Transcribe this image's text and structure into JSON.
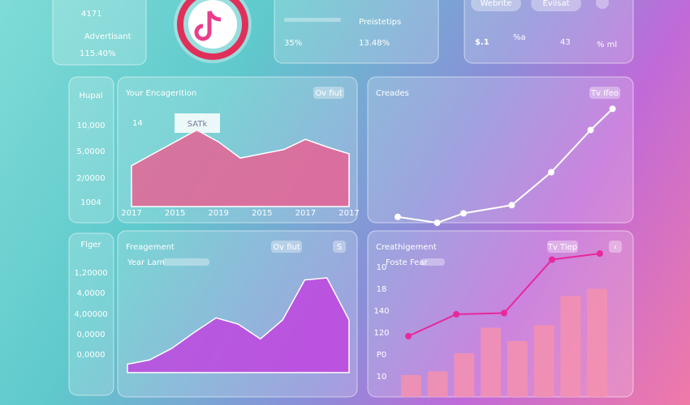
{
  "header": {
    "stat": {
      "value": "4171",
      "label": "Advertisant",
      "change": "115.40%"
    },
    "metrics": {
      "title": "Preistetips",
      "items": [
        "35%",
        "13.48%"
      ]
    },
    "summary": {
      "buttons": [
        "Webrite",
        "Evilsat"
      ],
      "amount": "$.1",
      "amount_unit": "%a",
      "count": "43",
      "count_unit": "% ml"
    }
  },
  "sidebars": [
    {
      "title": "Hupal",
      "labels": [
        "10,000",
        "5,0000",
        "2/0000",
        "1004"
      ]
    },
    {
      "title": "Flger",
      "labels": [
        "1,20000",
        "4,0000",
        "4,00000",
        "0,0000",
        "0,0000"
      ]
    }
  ],
  "chart_data": [
    {
      "type": "area",
      "title": "Your Encagerition",
      "headline": "14",
      "headline_badge": "SATk",
      "controls": [
        "Ov fiut"
      ],
      "categories": [
        "2017",
        null,
        "2015",
        null,
        "2019",
        null,
        "2015",
        null,
        "2017",
        null,
        "2017"
      ],
      "values": [
        48,
        62,
        76,
        90,
        76,
        57,
        62,
        67,
        79,
        70,
        62
      ],
      "color": "#ec5d8f",
      "ylim": [
        0,
        100
      ]
    },
    {
      "type": "line",
      "title": "Creades",
      "controls": [
        "Tv Ifeo"
      ],
      "x": [
        0,
        18,
        30,
        52,
        70,
        88,
        98
      ],
      "xlim": [
        0,
        100
      ],
      "values": [
        5,
        0,
        8,
        15,
        43,
        79,
        97
      ],
      "ylim": [
        0,
        100
      ],
      "color": "#ffffff"
    },
    {
      "type": "area",
      "title": "Freagement",
      "legend": "Year Lam",
      "controls": [
        "Ov fiut",
        "S"
      ],
      "values": [
        8,
        12,
        23,
        38,
        52,
        46,
        32,
        50,
        88,
        90,
        50
      ],
      "color": "#c23fe0",
      "ylim": [
        0,
        100
      ]
    },
    {
      "type": "bar",
      "title": "Creathigement",
      "legend": "Foste Fear",
      "controls": [
        "Tv Tiep",
        "‹"
      ],
      "axis_labels": [
        "10",
        "18",
        "140",
        "120",
        "P0",
        "10"
      ],
      "values": [
        18,
        21,
        36,
        57,
        46,
        59,
        83,
        89
      ],
      "color": "#f590b0",
      "line_values": [
        50,
        68,
        69,
        113,
        118
      ],
      "line_color": "#e8289c",
      "ylim": [
        0,
        120
      ]
    }
  ]
}
